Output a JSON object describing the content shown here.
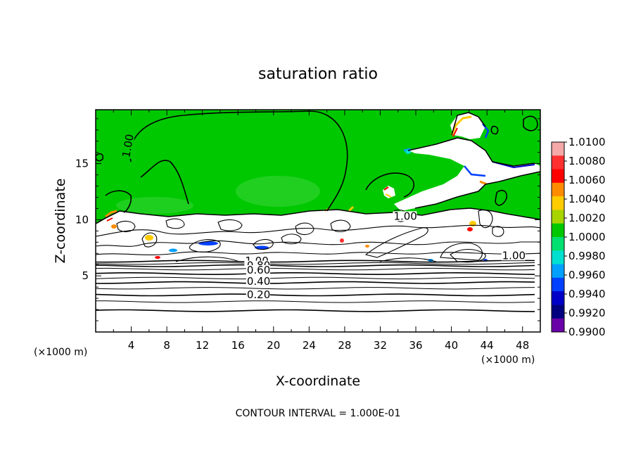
{
  "chart_data": {
    "type": "heatmap",
    "title": "saturation ratio",
    "xlabel": "X-coordinate",
    "ylabel": "Z-coordinate",
    "x_unit": "(×1000 m)",
    "y_unit": "(×1000 m)",
    "xlim": [
      0,
      50
    ],
    "ylim": [
      0,
      19.8
    ],
    "x_ticks": [
      4,
      8,
      12,
      16,
      20,
      24,
      28,
      32,
      36,
      40,
      44,
      48
    ],
    "y_ticks": [
      5,
      10,
      15
    ],
    "footer": "CONTOUR INTERVAL = 1.000E-01",
    "colorbar": {
      "labels": [
        "1.0100",
        "1.0080",
        "1.0060",
        "1.0040",
        "1.0020",
        "1.0000",
        "0.9980",
        "0.9960",
        "0.9940",
        "0.9920",
        "0.9900"
      ],
      "colors": [
        "#f4a8a8",
        "#ff3030",
        "#ff0000",
        "#ff8c00",
        "#ffcc00",
        "#a8d400",
        "#00c800",
        "#00e070",
        "#00e0d0",
        "#00a0ff",
        "#0040ff",
        "#0000c8",
        "#000080",
        "#6a00a8"
      ]
    },
    "contour_labels": [
      {
        "text": "1.00",
        "x": 3.8,
        "y": 15.5,
        "rotate": -80
      },
      {
        "text": "1.00",
        "x": 33.5,
        "y": 10.0
      },
      {
        "text": "1.00",
        "x": 45.7,
        "y": 6.5
      },
      {
        "text": "1.00",
        "x": 16.8,
        "y": 6.0
      },
      {
        "text": "0.80",
        "x": 17.0,
        "y": 5.6
      },
      {
        "text": "0.60",
        "x": 17.0,
        "y": 5.2
      },
      {
        "text": "0.40",
        "x": 17.0,
        "y": 4.2
      },
      {
        "text": "0.20",
        "x": 17.0,
        "y": 3.0
      }
    ],
    "horizontal_contours": [
      1.9,
      2.7,
      3.3,
      3.9,
      4.4,
      4.8,
      5.2,
      5.6,
      5.9,
      6.1,
      6.3
    ]
  }
}
